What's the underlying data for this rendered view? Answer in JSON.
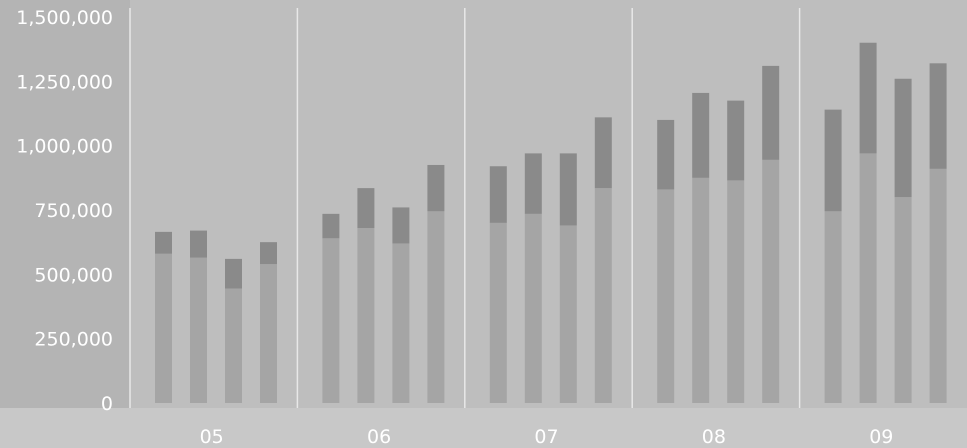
{
  "chart_data": {
    "type": "bar",
    "stacked": true,
    "title": "",
    "xlabel": "",
    "ylabel": "",
    "ylim": [
      0,
      1500000
    ],
    "yticks": [
      0,
      250000,
      500000,
      750000,
      1000000,
      1250000,
      1500000
    ],
    "ytick_labels": [
      "0",
      "250,000",
      "500,000",
      "750,000",
      "1,000,000",
      "1,250,000",
      "1,500,000"
    ],
    "groups": [
      "05",
      "06",
      "07",
      "08",
      "09"
    ],
    "bars_per_group": 4,
    "grid": "vertical separators between groups",
    "colors": {
      "background": "#b4b4b4",
      "plot_background": "#bebebe",
      "axis_band": "#c8c8c8",
      "series_lower": "#a5a5a5",
      "series_upper": "#8a8a8a",
      "separator": "#e8e8e8",
      "text": "#ffffff"
    },
    "series": [
      {
        "values": [
          [
            580000,
            565000,
            445000,
            540000
          ],
          [
            640000,
            680000,
            620000,
            745000
          ],
          [
            700000,
            735000,
            690000,
            835000
          ],
          [
            830000,
            875000,
            865000,
            945000
          ],
          [
            745000,
            970000,
            800000,
            910000
          ]
        ]
      },
      {
        "values": [
          [
            85000,
            105000,
            115000,
            85000
          ],
          [
            95000,
            155000,
            140000,
            180000
          ],
          [
            220000,
            235000,
            280000,
            275000
          ],
          [
            270000,
            330000,
            310000,
            365000
          ],
          [
            395000,
            430000,
            460000,
            410000
          ]
        ]
      }
    ]
  }
}
